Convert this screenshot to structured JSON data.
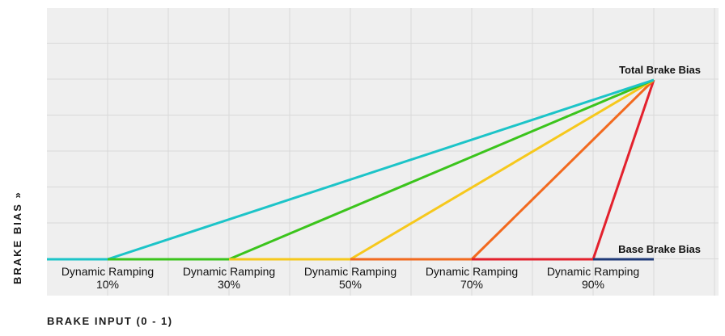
{
  "chart_data": {
    "type": "line",
    "xlabel": "BRAKE INPUT (0 - 1)",
    "ylabel": "BRAKE BIAS »",
    "xlim": [
      0,
      1
    ],
    "ylim": [
      0,
      1
    ],
    "grid": true,
    "annotations": {
      "total": "Total Brake Bias",
      "base": "Base Brake Bias"
    },
    "ramp_labels": [
      {
        "label": "Dynamic Ramping",
        "pct": "10%"
      },
      {
        "label": "Dynamic Ramping",
        "pct": "30%"
      },
      {
        "label": "Dynamic Ramping",
        "pct": "50%"
      },
      {
        "label": "Dynamic Ramping",
        "pct": "70%"
      },
      {
        "label": "Dynamic Ramping",
        "pct": "90%"
      }
    ],
    "base_line": {
      "x": [
        0,
        1
      ],
      "y": [
        0,
        0
      ],
      "color": "#1f3a78"
    },
    "series": [
      {
        "ramp_start": 0.1,
        "x": [
          0,
          0.1,
          1
        ],
        "y": [
          0,
          0,
          1
        ],
        "color": "#1cc4c8"
      },
      {
        "ramp_start": 0.3,
        "x": [
          0,
          0.3,
          1
        ],
        "y": [
          0,
          0,
          1
        ],
        "color": "#3bc41c"
      },
      {
        "ramp_start": 0.5,
        "x": [
          0,
          0.5,
          1
        ],
        "y": [
          0,
          0,
          1
        ],
        "color": "#f6c81c"
      },
      {
        "ramp_start": 0.7,
        "x": [
          0,
          0.7,
          1
        ],
        "y": [
          0,
          0,
          1
        ],
        "color": "#f26a1f"
      },
      {
        "ramp_start": 0.9,
        "x": [
          0,
          0.9,
          1
        ],
        "y": [
          0,
          0,
          1
        ],
        "color": "#e3212d"
      }
    ]
  }
}
